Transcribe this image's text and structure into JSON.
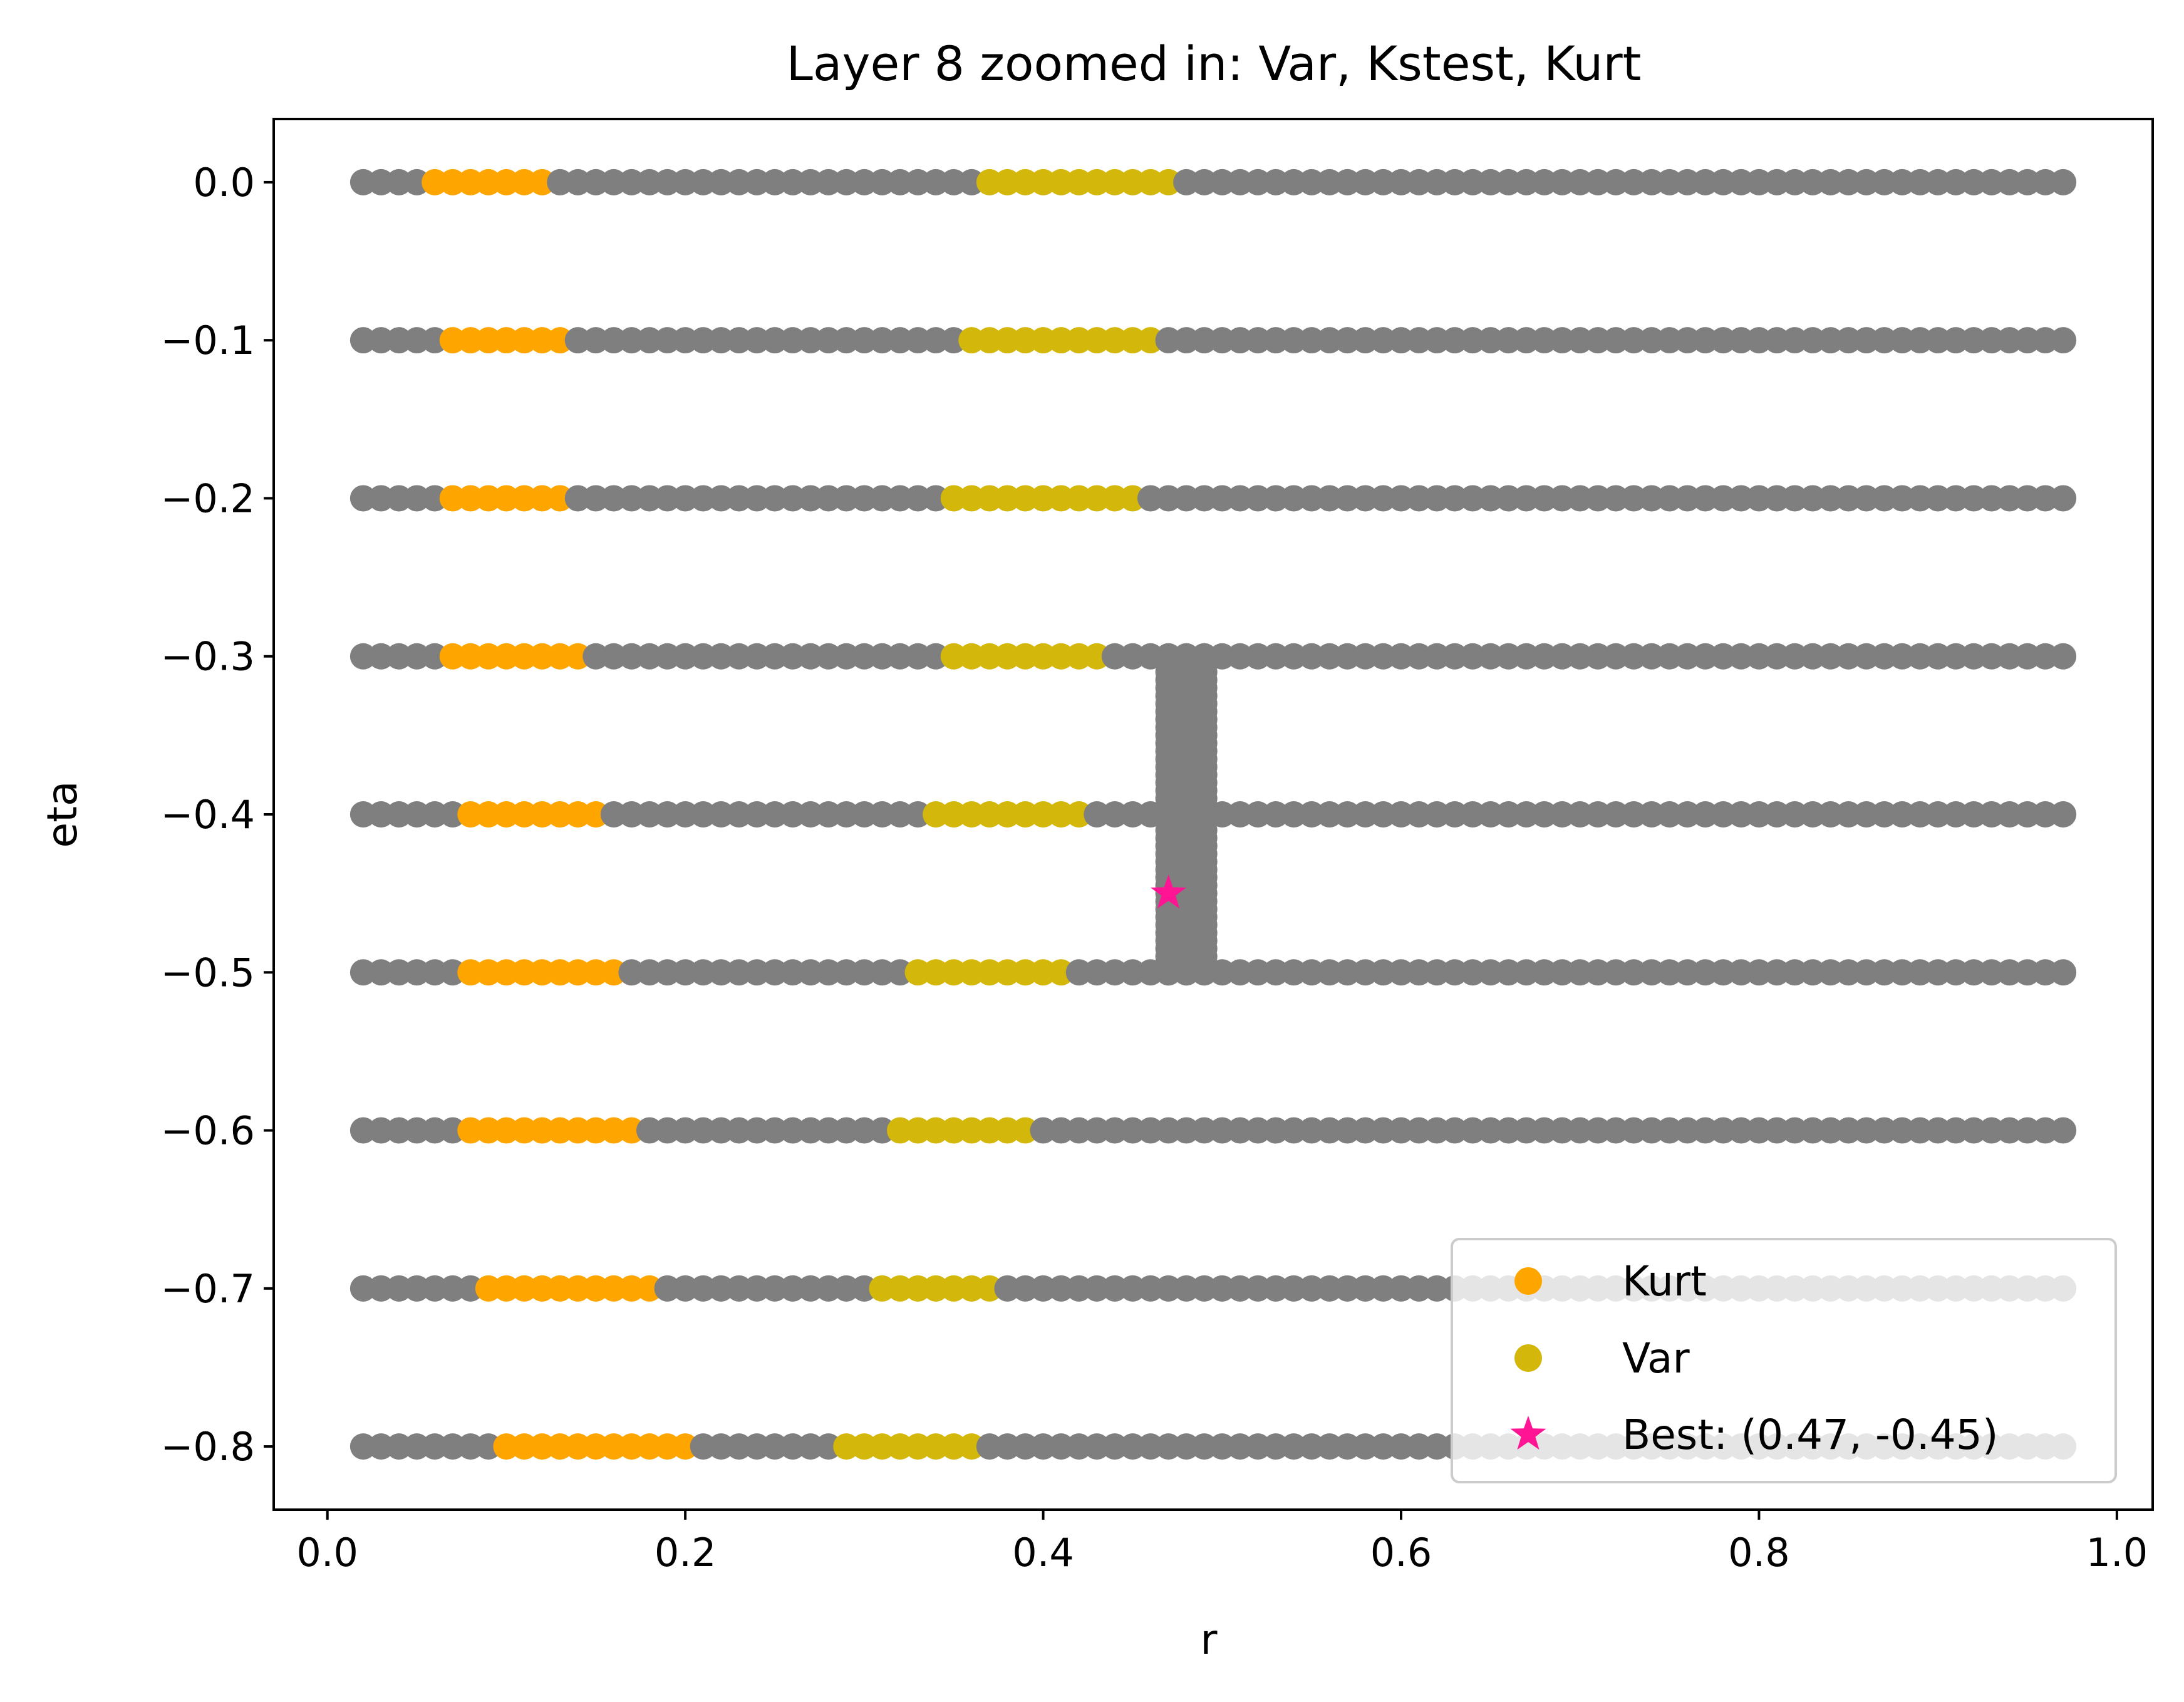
{
  "chart_data": {
    "type": "scatter",
    "title": "Layer 8 zoomed in: Var, Kstest, Kurt",
    "xlabel": "r",
    "ylabel": "eta",
    "xlim": [
      -0.03,
      1.02
    ],
    "ylim": [
      -0.84,
      0.04
    ],
    "xticks": [
      0.0,
      0.2,
      0.4,
      0.6,
      0.8,
      1.0
    ],
    "xtick_labels": [
      "0.0",
      "0.2",
      "0.4",
      "0.6",
      "0.8",
      "1.0"
    ],
    "yticks": [
      0.0,
      -0.1,
      -0.2,
      -0.3,
      -0.4,
      -0.5,
      -0.6,
      -0.7,
      -0.8
    ],
    "ytick_labels": [
      "0.0",
      "−0.1",
      "−0.2",
      "−0.3",
      "−0.4",
      "−0.5",
      "−0.6",
      "−0.7",
      "−0.8"
    ],
    "grid": false,
    "legend_placement": "lower right",
    "grid_points": {
      "color": "#7f7f7f",
      "eta_rows": [
        0.0,
        -0.1,
        -0.2,
        -0.3,
        -0.4,
        -0.5,
        -0.6,
        -0.7,
        -0.8
      ],
      "r_start": 0.02,
      "r_end": 0.97,
      "r_step": 0.01
    },
    "zoom_points": {
      "color": "#7f7f7f",
      "r_values": [
        0.47,
        0.48,
        0.49
      ],
      "eta_start": -0.5,
      "eta_end": -0.3,
      "eta_step": 0.005
    },
    "series": [
      {
        "name": "Kurt",
        "color": "#ffa500",
        "ranges": [
          {
            "eta": 0.0,
            "r_from": 0.06,
            "r_to": 0.12
          },
          {
            "eta": -0.1,
            "r_from": 0.07,
            "r_to": 0.13
          },
          {
            "eta": -0.2,
            "r_from": 0.07,
            "r_to": 0.13
          },
          {
            "eta": -0.3,
            "r_from": 0.07,
            "r_to": 0.14
          },
          {
            "eta": -0.4,
            "r_from": 0.08,
            "r_to": 0.15
          },
          {
            "eta": -0.5,
            "r_from": 0.08,
            "r_to": 0.16
          },
          {
            "eta": -0.6,
            "r_from": 0.08,
            "r_to": 0.17
          },
          {
            "eta": -0.7,
            "r_from": 0.09,
            "r_to": 0.18
          },
          {
            "eta": -0.8,
            "r_from": 0.1,
            "r_to": 0.2
          }
        ]
      },
      {
        "name": "Var",
        "color": "#d4b70b",
        "ranges": [
          {
            "eta": 0.0,
            "r_from": 0.37,
            "r_to": 0.47
          },
          {
            "eta": -0.1,
            "r_from": 0.36,
            "r_to": 0.46
          },
          {
            "eta": -0.2,
            "r_from": 0.35,
            "r_to": 0.45
          },
          {
            "eta": -0.3,
            "r_from": 0.35,
            "r_to": 0.43
          },
          {
            "eta": -0.4,
            "r_from": 0.34,
            "r_to": 0.42
          },
          {
            "eta": -0.5,
            "r_from": 0.33,
            "r_to": 0.41
          },
          {
            "eta": -0.6,
            "r_from": 0.32,
            "r_to": 0.39
          },
          {
            "eta": -0.7,
            "r_from": 0.31,
            "r_to": 0.37
          },
          {
            "eta": -0.8,
            "r_from": 0.29,
            "r_to": 0.36
          }
        ]
      },
      {
        "name": "Best: (0.47, -0.45)",
        "color": "#ff1493",
        "marker": "star",
        "points": [
          {
            "x": 0.47,
            "y": -0.45
          }
        ]
      }
    ]
  }
}
